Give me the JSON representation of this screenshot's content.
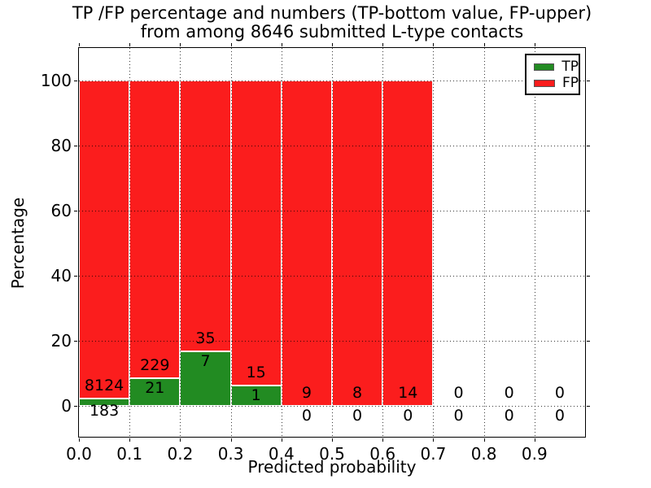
{
  "title": {
    "line1": "TP /FP percentage and numbers (TP-bottom value, FP-upper)",
    "line2": "from among 8646 submitted L-type contacts"
  },
  "axes": {
    "x_label": "Predicted probability",
    "y_label": "Percentage"
  },
  "legend": {
    "items": [
      {
        "label": "TP",
        "color_key": "tp"
      },
      {
        "label": "FP",
        "color_key": "fp"
      }
    ]
  },
  "colors": {
    "tp": "#228b22",
    "fp": "#fb1d1d",
    "bar_edge": "#ffffff",
    "grid": "#000000",
    "text": "#000000",
    "background": "#ffffff"
  },
  "chart_data": {
    "type": "bar",
    "stacked": true,
    "title": "TP /FP percentage and numbers (TP-bottom value, FP-upper) from among 8646 submitted L-type contacts",
    "xlabel": "Predicted probability",
    "ylabel": "Percentage",
    "xlim": [
      0.0,
      1.0
    ],
    "ylim": [
      -10,
      110
    ],
    "x_ticks": [
      "0.0",
      "0.1",
      "0.2",
      "0.3",
      "0.4",
      "0.5",
      "0.6",
      "0.7",
      "0.8",
      "0.9"
    ],
    "x_tick_values": [
      0.0,
      0.1,
      0.2,
      0.3,
      0.4,
      0.5,
      0.6,
      0.7,
      0.8,
      0.9
    ],
    "y_ticks": [
      "0",
      "20",
      "40",
      "60",
      "80",
      "100"
    ],
    "y_tick_values": [
      0,
      20,
      40,
      60,
      80,
      100
    ],
    "grid": "dotted",
    "legend_position": "upper-right",
    "total_contacts": 8646,
    "series_names": [
      "TP",
      "FP"
    ],
    "bins": [
      {
        "bin_start": 0.0,
        "bin_end": 0.1,
        "tp": 183,
        "fp": 8124,
        "tp_pct": 2.2,
        "fp_pct": 97.8,
        "fp_label_pct": 6.2,
        "tp_label_pct": -1.6
      },
      {
        "bin_start": 0.1,
        "bin_end": 0.2,
        "tp": 21,
        "fp": 229,
        "tp_pct": 8.4,
        "fp_pct": 91.6,
        "fp_label_pct": 12.4,
        "tp_label_pct": 5.4
      },
      {
        "bin_start": 0.2,
        "bin_end": 0.3,
        "tp": 7,
        "fp": 35,
        "tp_pct": 16.67,
        "fp_pct": 83.33,
        "fp_label_pct": 20.7,
        "tp_label_pct": 13.7
      },
      {
        "bin_start": 0.3,
        "bin_end": 0.4,
        "tp": 1,
        "fp": 15,
        "tp_pct": 6.25,
        "fp_pct": 93.75,
        "fp_label_pct": 10.2,
        "tp_label_pct": 3.2
      },
      {
        "bin_start": 0.4,
        "bin_end": 0.5,
        "tp": 0,
        "fp": 9,
        "tp_pct": 0,
        "fp_pct": 100,
        "fp_label_pct": 4,
        "tp_label_pct": -3
      },
      {
        "bin_start": 0.5,
        "bin_end": 0.6,
        "tp": 0,
        "fp": 8,
        "tp_pct": 0,
        "fp_pct": 100,
        "fp_label_pct": 4,
        "tp_label_pct": -3
      },
      {
        "bin_start": 0.6,
        "bin_end": 0.7,
        "tp": 0,
        "fp": 14,
        "tp_pct": 0,
        "fp_pct": 100,
        "fp_label_pct": 4,
        "tp_label_pct": -3
      },
      {
        "bin_start": 0.7,
        "bin_end": 0.8,
        "tp": 0,
        "fp": 0,
        "tp_pct": 0,
        "fp_pct": 0,
        "fp_label_pct": 4,
        "tp_label_pct": -3
      },
      {
        "bin_start": 0.8,
        "bin_end": 0.9,
        "tp": 0,
        "fp": 0,
        "tp_pct": 0,
        "fp_pct": 0,
        "fp_label_pct": 4,
        "tp_label_pct": -3
      },
      {
        "bin_start": 0.9,
        "bin_end": 1.0,
        "tp": 0,
        "fp": 0,
        "tp_pct": 0,
        "fp_pct": 0,
        "fp_label_pct": 4,
        "tp_label_pct": -3
      }
    ]
  }
}
